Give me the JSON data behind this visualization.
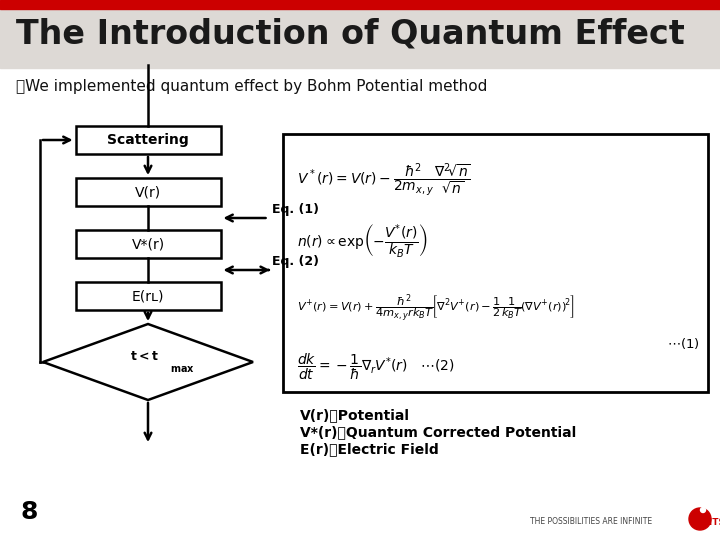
{
  "title": "The Introduction of Quantum Effect",
  "title_color": "#1a1a1a",
  "title_bg_color": "#ddd9d5",
  "red_bar_color": "#cc0000",
  "slide_bg_color": "#ffffff",
  "content_bg_color": "#ffffff",
  "bullet": "・We implemented quantum effect by Bohm Potential method",
  "eq1_label": "Eq. (1)",
  "eq2_label": "Eq. (2)",
  "legend_lines": [
    "V(r)：Potential",
    "V*(r)：Quantum Corrected Potential",
    "E(r)：Electric Field"
  ],
  "page_num": "8",
  "fujitsu_tagline": "THE POSSIBILITIES ARE INFINITE",
  "box_border_color": "#000000",
  "title_fontsize": 24,
  "bullet_fontsize": 11
}
